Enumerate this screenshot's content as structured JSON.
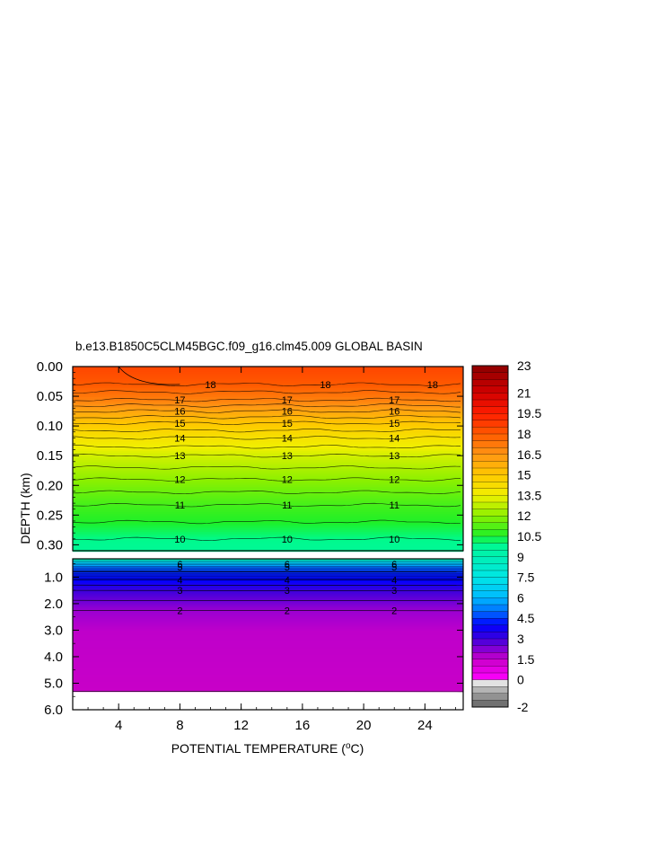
{
  "title": "b.e13.B1850C5CLM45BGC.f09_g16.clm45.009 GLOBAL BASIN",
  "chart_data": {
    "type": "contour",
    "title": "b.e13.B1850C5CLM45BGC.f09_g16.clm45.009 GLOBAL BASIN",
    "xlabel_prefix": "POTENTIAL TEMPERATURE (",
    "xlabel_sup": "o",
    "xlabel_suffix": "C)",
    "ylabel": "DEPTH (km)",
    "x_range": [
      1,
      26.5
    ],
    "x_ticks": [
      "4",
      "8",
      "12",
      "16",
      "20",
      "24"
    ],
    "x_tick_values": [
      4,
      8,
      12,
      16,
      20,
      24
    ],
    "upper_panel": {
      "y_range": [
        0,
        0.31
      ],
      "y_ticks": [
        "0.00",
        "0.05",
        "0.10",
        "0.15",
        "0.20",
        "0.25",
        "0.30"
      ],
      "y_tick_values": [
        0,
        0.05,
        0.1,
        0.15,
        0.2,
        0.25,
        0.3
      ]
    },
    "lower_panel": {
      "y_range": [
        0.31,
        6.0
      ],
      "y_ticks": [
        "1.0",
        "2.0",
        "3.0",
        "4.0",
        "5.0",
        "6.0"
      ],
      "y_tick_values": [
        1,
        2,
        3,
        4,
        5,
        6
      ]
    },
    "upper_contours": [
      {
        "label": "18",
        "depth": 0.03,
        "label_x": [
          10,
          17.5,
          24.5
        ]
      },
      {
        "label": "17",
        "depth": 0.056,
        "label_x": [
          8,
          15,
          22
        ]
      },
      {
        "label": "16",
        "depth": 0.075,
        "label_x": [
          8,
          15,
          22
        ]
      },
      {
        "label": "15",
        "depth": 0.095,
        "label_x": [
          8,
          15,
          22
        ]
      },
      {
        "label": "14",
        "depth": 0.12,
        "label_x": [
          8,
          15,
          22
        ]
      },
      {
        "label": "13",
        "depth": 0.15,
        "label_x": [
          8,
          15,
          22
        ]
      },
      {
        "label": "12",
        "depth": 0.19,
        "label_x": [
          8,
          15,
          22
        ]
      },
      {
        "label": "11",
        "depth": 0.233,
        "label_x": [
          8,
          15,
          22
        ]
      },
      {
        "label": "10",
        "depth": 0.29,
        "label_x": [
          8,
          15,
          22
        ]
      }
    ],
    "lower_contours": [
      {
        "label": "6",
        "depth": 0.52,
        "label_x": [
          8,
          15,
          22
        ]
      },
      {
        "label": "5",
        "depth": 0.62,
        "label_x": [
          8,
          15,
          22
        ]
      },
      {
        "label": "4",
        "depth": 1.1,
        "label_x": [
          8,
          15,
          22
        ]
      },
      {
        "label": "3",
        "depth": 1.5,
        "label_x": [
          8,
          15,
          22
        ]
      },
      {
        "label": "2",
        "depth": 2.25,
        "label_x": [
          8,
          15,
          22
        ]
      }
    ],
    "colorbar": {
      "levels": [
        -2,
        -1.5,
        -1,
        -0.5,
        0,
        0.5,
        1,
        1.5,
        2,
        2.5,
        3,
        3.5,
        4,
        4.5,
        5,
        5.5,
        6,
        6.5,
        7,
        7.5,
        8,
        8.5,
        9,
        9.5,
        10,
        10.5,
        11,
        11.5,
        12,
        12.5,
        13,
        13.5,
        14,
        14.5,
        15,
        15.5,
        16,
        16.5,
        17,
        17.5,
        18,
        18.5,
        19,
        19.5,
        20,
        20.5,
        21,
        21.5,
        22,
        22.5,
        23
      ],
      "tick_labels": [
        "23",
        "21",
        "19.5",
        "18",
        "16.5",
        "15",
        "13.5",
        "12",
        "10.5",
        "9",
        "7.5",
        "6",
        "4.5",
        "3",
        "1.5",
        "0",
        "-2"
      ],
      "tick_values": [
        23,
        21,
        19.5,
        18,
        16.5,
        15,
        13.5,
        12,
        10.5,
        9,
        7.5,
        6,
        4.5,
        3,
        1.5,
        0,
        -2
      ]
    }
  }
}
